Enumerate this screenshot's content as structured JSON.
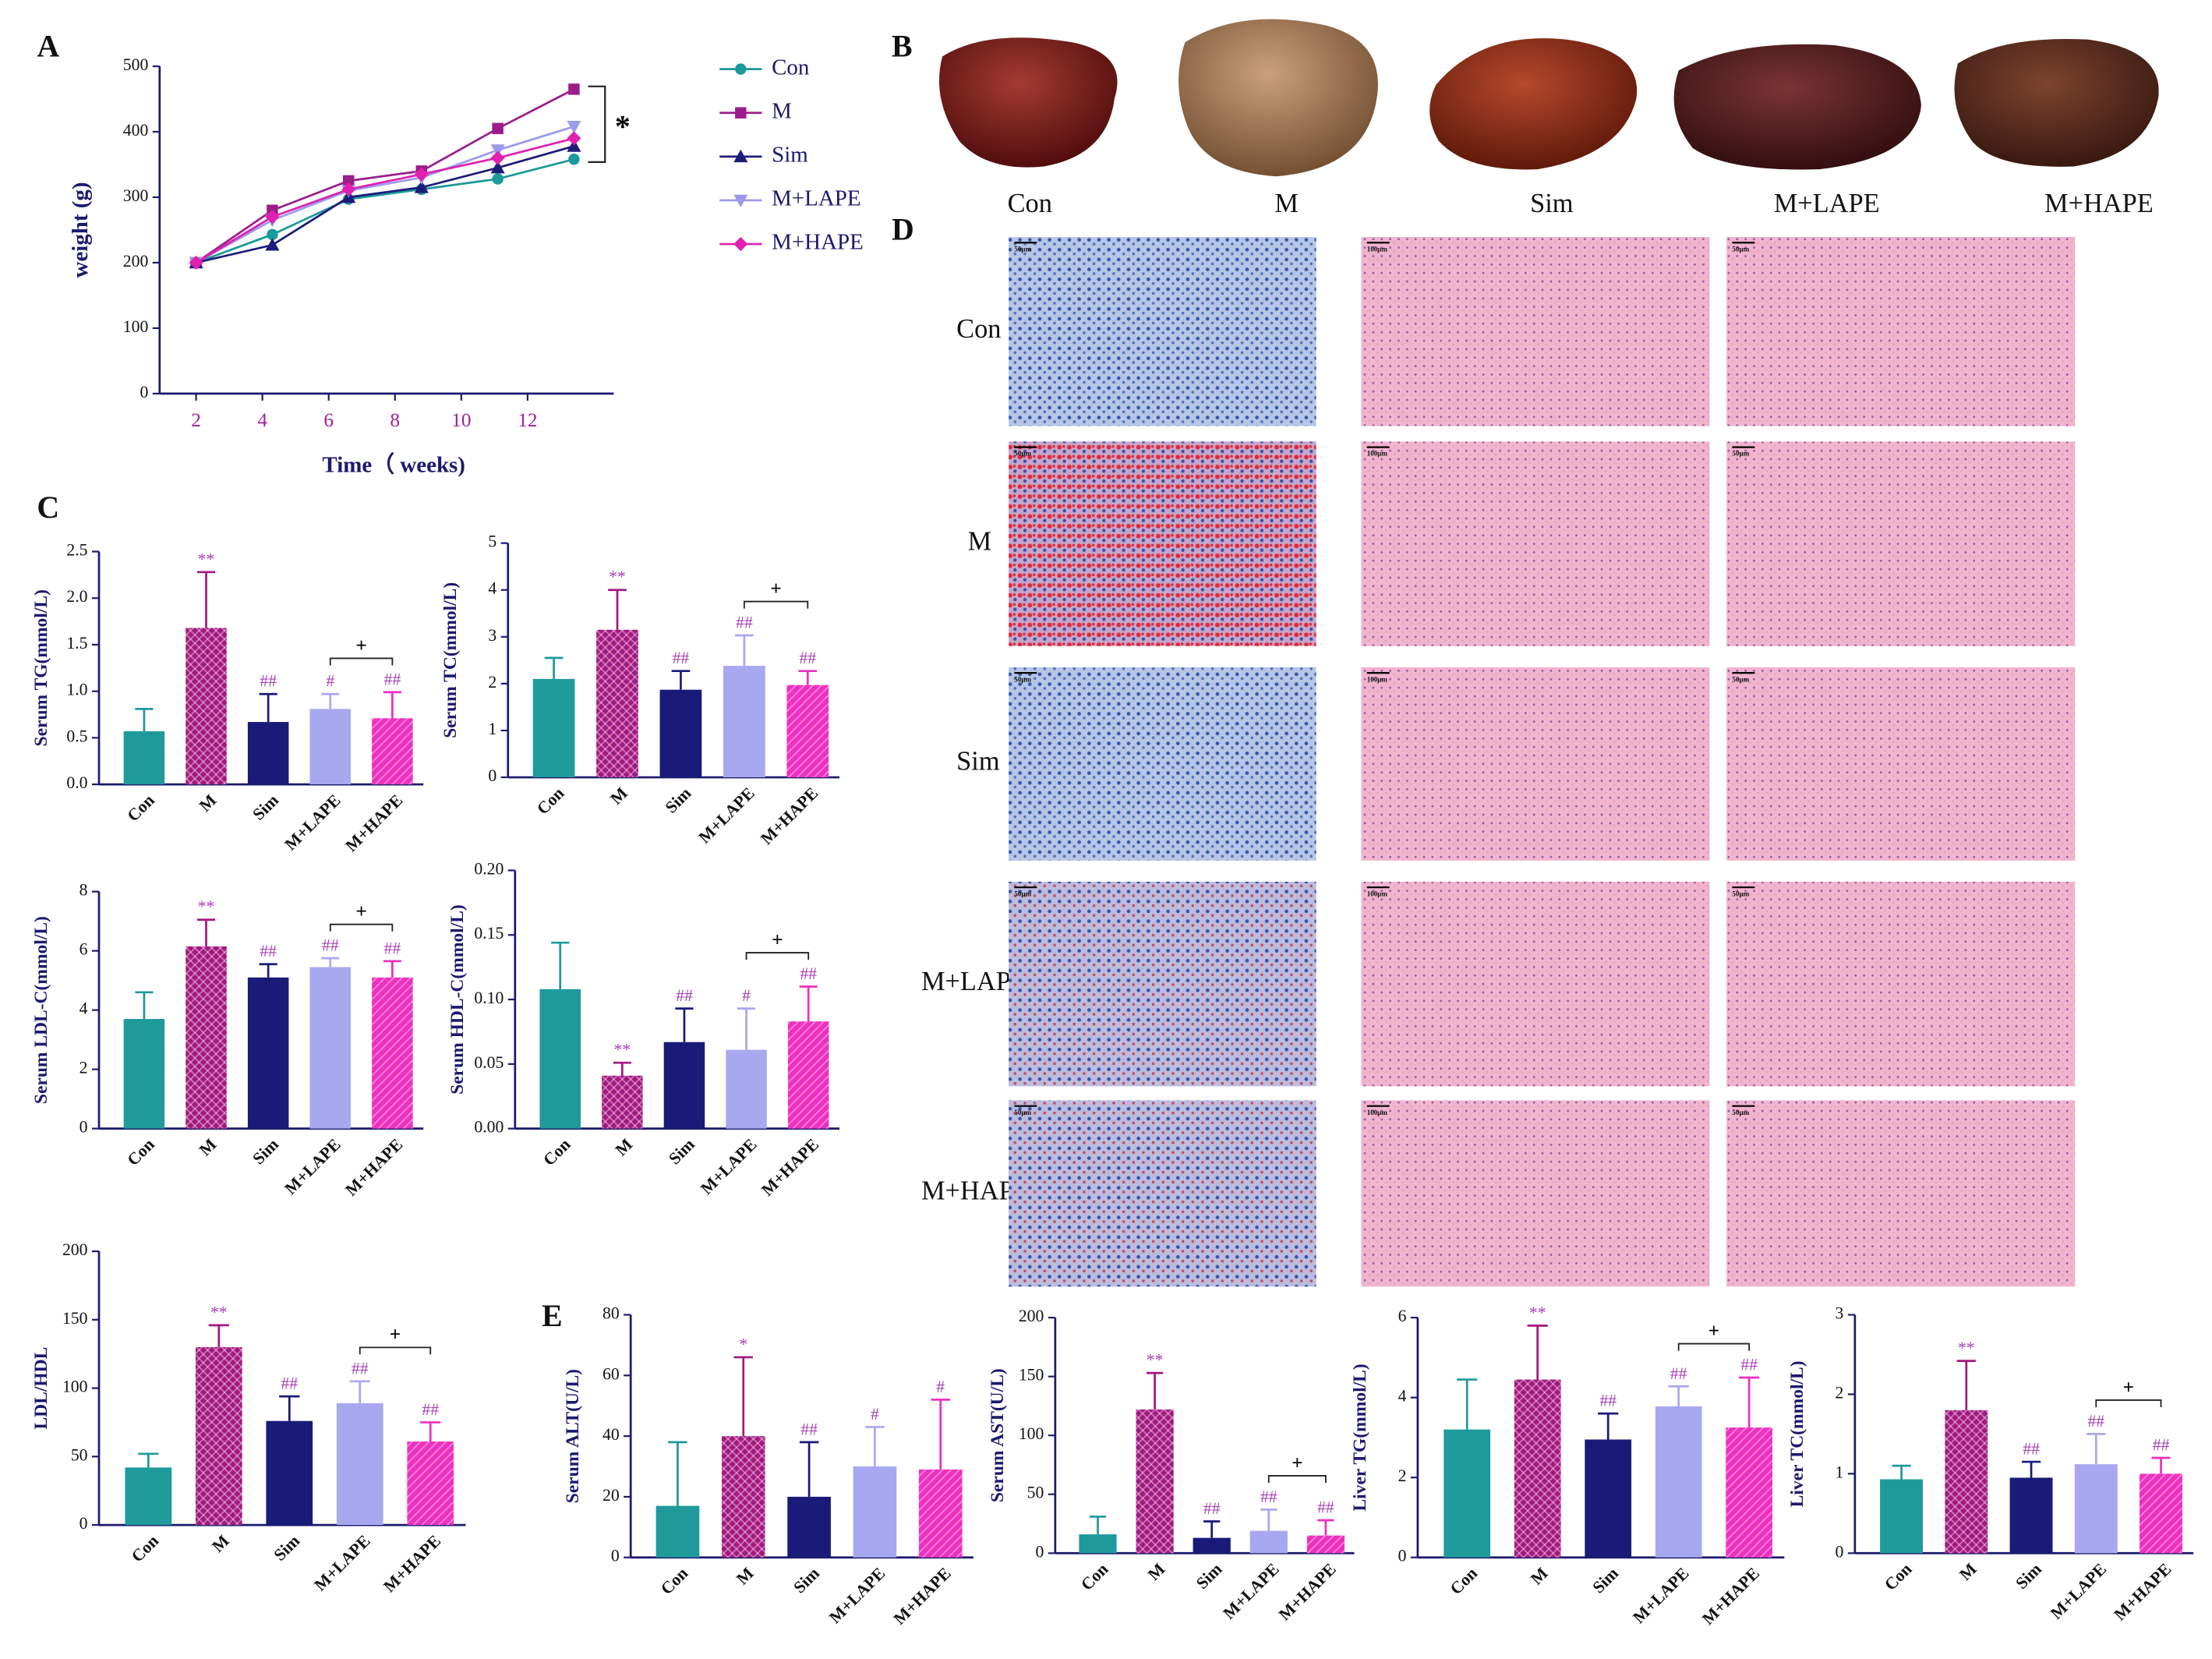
{
  "panel_letters": [
    "A",
    "B",
    "C",
    "D",
    "E"
  ],
  "liver_photos": {
    "labels": [
      "Con",
      "M",
      "Sim",
      "M+LAPE",
      "M+HAPE"
    ]
  },
  "histology": {
    "rows": [
      "Con",
      "M",
      "Sim",
      "M+LAPE",
      "M+HAPE"
    ],
    "scale_bars": [
      "50μm",
      "100μm",
      "50μm"
    ]
  },
  "chart_data": [
    {
      "type": "line",
      "xlabel": "Time（ weeks)",
      "ylabel": "weight (g)",
      "x": [
        2,
        4.3,
        6.6,
        8.8,
        11.1,
        13.4
      ],
      "xlim": [
        0.9,
        14.6
      ],
      "xticks": [
        2,
        4,
        6,
        8,
        10,
        12
      ],
      "ylim": [
        0,
        500
      ],
      "yticks": [
        0,
        100,
        200,
        300,
        400,
        500
      ],
      "series": [
        {
          "name": "Con",
          "color": "#1a9a9a",
          "marker": "circle",
          "values": [
            200,
            243,
            297,
            312,
            328,
            358
          ]
        },
        {
          "name": "M",
          "color": "#9b1d8a",
          "marker": "square",
          "values": [
            200,
            280,
            325,
            340,
            405,
            465
          ]
        },
        {
          "name": "Sim",
          "color": "#1c1c7a",
          "marker": "triangle",
          "values": [
            200,
            227,
            300,
            315,
            345,
            378
          ]
        },
        {
          "name": "M+LAPE",
          "color": "#9a9aee",
          "marker": "triangle-down",
          "values": [
            200,
            265,
            310,
            330,
            372,
            408
          ]
        },
        {
          "name": "M+HAPE",
          "color": "#e020b0",
          "marker": "diamond",
          "values": [
            200,
            270,
            312,
            335,
            360,
            390
          ]
        }
      ],
      "comparison": {
        "series": [
          "M",
          "Con"
        ],
        "label": "*"
      }
    },
    {
      "type": "bar",
      "ylabel": "Serum TG(mmol/L)",
      "categories": [
        "Con",
        "M",
        "Sim",
        "M+LAPE",
        "M+HAPE"
      ],
      "values": [
        0.57,
        1.68,
        0.67,
        0.81,
        0.71
      ],
      "errors": [
        0.24,
        0.6,
        0.3,
        0.16,
        0.28
      ],
      "significance": [
        null,
        "**",
        "##",
        "#",
        "##"
      ],
      "comparison": {
        "groups": [
          "M+LAPE",
          "M+HAPE"
        ],
        "label": "+"
      },
      "ylim": [
        0,
        2.5
      ],
      "yticks": [
        {
          "value": 0,
          "label": "0.0"
        },
        0.5,
        {
          "value": 1,
          "label": "1.0"
        },
        1.5,
        {
          "value": 2,
          "label": "2.0"
        },
        2.5
      ],
      "colors": [
        "#1e9a9a",
        "#a3177f",
        "#1a1a78",
        "#a8a8f0",
        "#ee30c0"
      ],
      "hatch": [
        null,
        "cross",
        null,
        null,
        "diag"
      ]
    },
    {
      "type": "bar",
      "ylabel": "Serum TC(mmol/L)",
      "categories": [
        "Con",
        "M",
        "Sim",
        "M+LAPE",
        "M+HAPE"
      ],
      "values": [
        2.1,
        3.15,
        1.87,
        2.38,
        1.97
      ],
      "errors": [
        0.45,
        0.85,
        0.4,
        0.65,
        0.3
      ],
      "significance": [
        null,
        "**",
        "##",
        "##",
        "##"
      ],
      "comparison": {
        "groups": [
          "M+LAPE",
          "M+HAPE"
        ],
        "label": "+"
      },
      "ylim": [
        0,
        5
      ],
      "yticks": [
        0,
        1,
        2,
        3,
        4,
        5
      ],
      "colors": [
        "#1e9a9a",
        "#a3177f",
        "#1a1a78",
        "#a8a8f0",
        "#ee30c0"
      ],
      "hatch": [
        null,
        "cross",
        null,
        null,
        "diag"
      ]
    },
    {
      "type": "bar",
      "ylabel": "Serum LDL-C(mmol/L)",
      "categories": [
        "Con",
        "M",
        "Sim",
        "M+LAPE",
        "M+HAPE"
      ],
      "values": [
        3.7,
        6.15,
        5.1,
        5.45,
        5.1
      ],
      "errors": [
        0.9,
        0.9,
        0.45,
        0.3,
        0.55
      ],
      "significance": [
        null,
        "**",
        "##",
        "##",
        "##"
      ],
      "comparison": {
        "groups": [
          "M+LAPE",
          "M+HAPE"
        ],
        "label": "+"
      },
      "ylim": [
        0,
        8
      ],
      "yticks": [
        0,
        2,
        4,
        6,
        8
      ],
      "colors": [
        "#1e9a9a",
        "#a3177f",
        "#1a1a78",
        "#a8a8f0",
        "#ee30c0"
      ],
      "hatch": [
        null,
        "cross",
        null,
        null,
        "diag"
      ]
    },
    {
      "type": "bar",
      "ylabel": "Serum HDL-C(mmol/L)",
      "categories": [
        "Con",
        "M",
        "Sim",
        "M+LAPE",
        "M+HAPE"
      ],
      "values": [
        0.108,
        0.041,
        0.067,
        0.061,
        0.083
      ],
      "errors": [
        0.036,
        0.01,
        0.026,
        0.032,
        0.027
      ],
      "significance": [
        null,
        "**",
        "##",
        "#",
        "##"
      ],
      "comparison": {
        "groups": [
          "M+LAPE",
          "M+HAPE"
        ],
        "label": "+"
      },
      "ylim": [
        0,
        0.2
      ],
      "yticks": [
        {
          "value": 0,
          "label": "0.00"
        },
        0.05,
        {
          "value": 0.1,
          "label": "0.10"
        },
        0.15,
        {
          "value": 0.2,
          "label": "0.20"
        }
      ],
      "colors": [
        "#1e9a9a",
        "#a3177f",
        "#1a1a78",
        "#a8a8f0",
        "#ee30c0"
      ],
      "hatch": [
        null,
        "cross",
        null,
        null,
        "diag"
      ]
    },
    {
      "type": "bar",
      "ylabel": "LDL/HDL",
      "categories": [
        "Con",
        "M",
        "Sim",
        "M+LAPE",
        "M+HAPE"
      ],
      "values": [
        42,
        130,
        76,
        89,
        61
      ],
      "errors": [
        10,
        16,
        18,
        16,
        14
      ],
      "significance": [
        null,
        "**",
        "##",
        "##",
        "##"
      ],
      "comparison": {
        "groups": [
          "M+LAPE",
          "M+HAPE"
        ],
        "label": "+"
      },
      "ylim": [
        0,
        200
      ],
      "yticks": [
        0,
        50,
        100,
        150,
        200
      ],
      "colors": [
        "#1e9a9a",
        "#a3177f",
        "#1a1a78",
        "#a8a8f0",
        "#ee30c0"
      ],
      "hatch": [
        null,
        "cross",
        null,
        null,
        "diag"
      ]
    },
    {
      "type": "bar",
      "ylabel": "Serum ALT(U/L)",
      "categories": [
        "Con",
        "M",
        "Sim",
        "M+LAPE",
        "M+HAPE"
      ],
      "values": [
        17,
        40,
        20,
        30,
        29
      ],
      "errors": [
        21,
        26,
        18,
        13,
        23
      ],
      "significance": [
        null,
        "*",
        "##",
        "#",
        "#"
      ],
      "ylim": [
        0,
        80
      ],
      "yticks": [
        0,
        20,
        40,
        60,
        80
      ],
      "colors": [
        "#1e9a9a",
        "#a3177f",
        "#1a1a78",
        "#a8a8f0",
        "#ee30c0"
      ],
      "hatch": [
        null,
        "cross",
        null,
        null,
        "diag"
      ]
    },
    {
      "type": "bar",
      "ylabel": "Serum AST(U/L)",
      "categories": [
        "Con",
        "M",
        "Sim",
        "M+LAPE",
        "M+HAPE"
      ],
      "values": [
        16,
        122,
        13,
        19,
        15
      ],
      "errors": [
        15,
        31,
        14,
        18,
        13
      ],
      "significance": [
        null,
        "**",
        "##",
        "##",
        "##"
      ],
      "comparison": {
        "groups": [
          "M+LAPE",
          "M+HAPE"
        ],
        "label": "+"
      },
      "ylim": [
        0,
        200
      ],
      "yticks": [
        0,
        50,
        100,
        150,
        200
      ],
      "colors": [
        "#1e9a9a",
        "#a3177f",
        "#1a1a78",
        "#a8a8f0",
        "#ee30c0"
      ],
      "hatch": [
        null,
        "cross",
        null,
        null,
        "diag"
      ]
    },
    {
      "type": "bar",
      "ylabel": "Liver TG(mmol/L)",
      "categories": [
        "Con",
        "M",
        "Sim",
        "M+LAPE",
        "M+HAPE"
      ],
      "values": [
        3.2,
        4.45,
        2.95,
        3.78,
        3.25
      ],
      "errors": [
        1.25,
        1.35,
        0.65,
        0.5,
        1.25
      ],
      "significance": [
        null,
        "**",
        "##",
        "##",
        "##"
      ],
      "comparison": {
        "groups": [
          "M+LAPE",
          "M+HAPE"
        ],
        "label": "+"
      },
      "ylim": [
        0,
        6
      ],
      "yticks": [
        0,
        2,
        4,
        6
      ],
      "colors": [
        "#1e9a9a",
        "#a3177f",
        "#1a1a78",
        "#a8a8f0",
        "#ee30c0"
      ],
      "hatch": [
        null,
        "cross",
        null,
        null,
        "diag"
      ]
    },
    {
      "type": "bar",
      "ylabel": "Liver TC(mmol/L)",
      "categories": [
        "Con",
        "M",
        "Sim",
        "M+LAPE",
        "M+HAPE"
      ],
      "values": [
        0.93,
        1.8,
        0.95,
        1.12,
        1.0
      ],
      "errors": [
        0.17,
        0.62,
        0.2,
        0.38,
        0.2
      ],
      "significance": [
        null,
        "**",
        "##",
        "##",
        "##"
      ],
      "comparison": {
        "groups": [
          "M+LAPE",
          "M+HAPE"
        ],
        "label": "+"
      },
      "ylim": [
        0,
        3
      ],
      "yticks": [
        0,
        1,
        2,
        3
      ],
      "colors": [
        "#1e9a9a",
        "#a3177f",
        "#1a1a78",
        "#a8a8f0",
        "#ee30c0"
      ],
      "hatch": [
        null,
        "cross",
        null,
        null,
        "diag"
      ]
    }
  ]
}
